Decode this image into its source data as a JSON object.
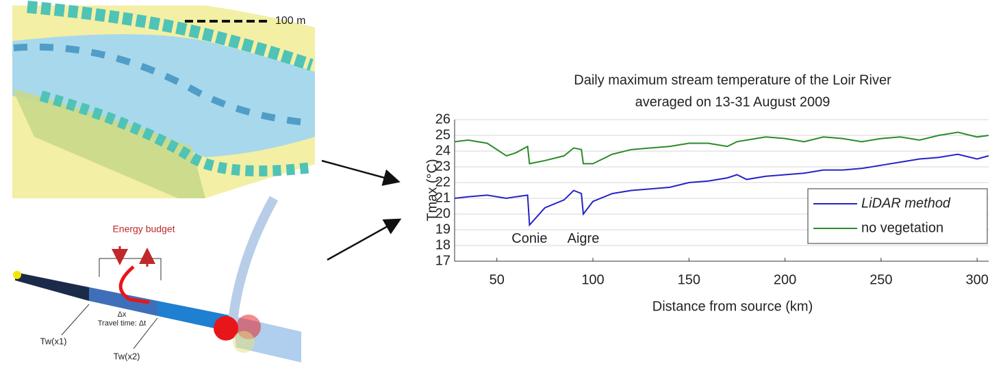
{
  "illustration": {
    "scale_label": "100 m",
    "energy_label": "Energy budget",
    "dx_label": "Δx",
    "travel_label": "Travel time: Δt",
    "upstream_label": "Tw(x1)",
    "downstream_label": "Tw(x2)"
  },
  "chart_data": {
    "type": "line",
    "title": [
      "Daily maximum stream temperature of the Loir River",
      "averaged on 13-31 August 2009"
    ],
    "xlabel": "Distance from source (km)",
    "ylabel": "Tmax (°C)",
    "x": [
      28,
      35,
      45,
      55,
      60,
      66,
      67,
      75,
      85,
      90,
      94,
      95,
      100,
      110,
      120,
      130,
      140,
      150,
      160,
      170,
      175,
      180,
      190,
      200,
      210,
      220,
      230,
      240,
      250,
      260,
      270,
      280,
      290,
      300,
      306
    ],
    "series": [
      {
        "name": "LiDAR method",
        "color": "#2323c8",
        "values": [
          21.0,
          21.1,
          21.2,
          21.0,
          21.1,
          21.2,
          19.3,
          20.4,
          20.9,
          21.5,
          21.3,
          20.0,
          20.8,
          21.3,
          21.5,
          21.6,
          21.7,
          22.0,
          22.1,
          22.3,
          22.5,
          22.2,
          22.4,
          22.5,
          22.6,
          22.8,
          22.8,
          22.9,
          23.1,
          23.3,
          23.5,
          23.6,
          23.8,
          23.5,
          23.7
        ]
      },
      {
        "name": "no vegetation",
        "color": "#2a8a2a",
        "values": [
          24.6,
          24.7,
          24.5,
          23.7,
          23.9,
          24.3,
          23.2,
          23.4,
          23.7,
          24.2,
          24.1,
          23.2,
          23.2,
          23.8,
          24.1,
          24.2,
          24.3,
          24.5,
          24.5,
          24.3,
          24.6,
          24.7,
          24.9,
          24.8,
          24.6,
          24.9,
          24.8,
          24.6,
          24.8,
          24.9,
          24.7,
          25.0,
          25.2,
          24.9,
          25.0
        ]
      }
    ],
    "annotations": [
      {
        "text": "Conie",
        "x": 67,
        "y": 18.4
      },
      {
        "text": "Aigre",
        "x": 95,
        "y": 18.4
      }
    ],
    "xlim": [
      28,
      306
    ],
    "xticks": [
      50,
      100,
      150,
      200,
      250,
      300
    ],
    "ylim": [
      17,
      26
    ],
    "yticks": [
      17,
      18,
      19,
      20,
      21,
      22,
      23,
      24,
      25,
      26
    ],
    "grid": true,
    "legend": "lower right"
  }
}
